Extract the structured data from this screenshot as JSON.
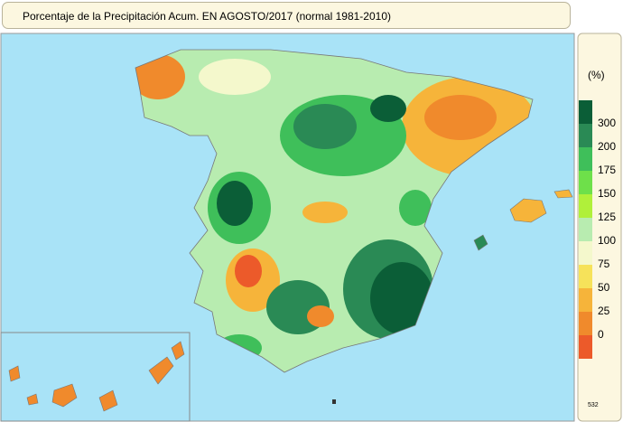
{
  "title": "Porcentaje de la Precipitación Acum. EN  AGOSTO/2017  (normal 1981-2010)",
  "legend": {
    "unit": "(%)",
    "labels": [
      "300",
      "200",
      "175",
      "150",
      "125",
      "100",
      "75",
      "50",
      "25",
      "0"
    ],
    "colors": [
      "#0b5e37",
      "#2a8a55",
      "#3fbf5a",
      "#6ee04a",
      "#b0f03a",
      "#b8ecb0",
      "#f4f8cc",
      "#f6e25a",
      "#f6b43a",
      "#f08a2c",
      "#ec5a2a"
    ]
  },
  "code": "532"
}
